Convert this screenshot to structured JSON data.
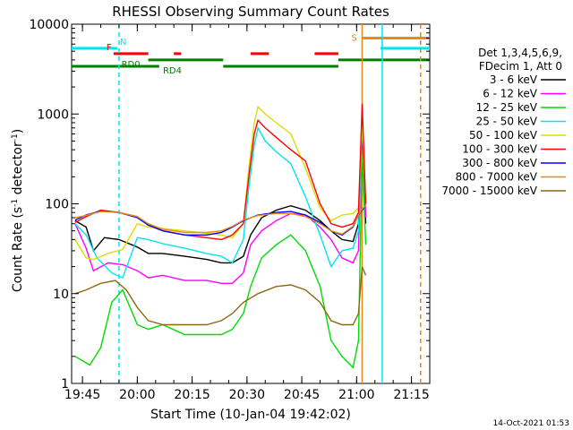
{
  "chart_data": {
    "type": "line",
    "title": "RHESSI Observing Summary Count Rates",
    "xlabel": "Start Time (10-Jan-04 19:42:02)",
    "ylabel": "Count Rate (s⁻¹ detector⁻¹)",
    "ylabel_parts": [
      "Count Rate (s",
      "-1",
      " detector",
      "-1",
      ")"
    ],
    "y_scale": "log",
    "ylim": [
      1,
      10000
    ],
    "xlim": [
      "19:42:02",
      "21:20:00"
    ],
    "x_unit": "time of day (UT)",
    "x_ticks": [
      "19:45",
      "20:00",
      "20:15",
      "20:30",
      "20:45",
      "21:00",
      "21:15"
    ],
    "y_ticks": [
      "1",
      "10",
      "100",
      "1000",
      "10000"
    ],
    "legend_title": [
      "Det 1,3,4,5,6,9,",
      "FDecim 1, Att 0"
    ],
    "legend_position": "right",
    "footer": "14-Oct-2021 01:53",
    "flags": [
      {
        "label": "N",
        "color": "#00e5ee",
        "segments": [
          [
            "19:42:02",
            "19:54:30"
          ],
          [
            "21:06:30",
            "21:20:00"
          ]
        ],
        "level": 5400
      },
      {
        "label": "S",
        "color": "#e88a16",
        "segments": [
          [
            "21:01:30",
            "21:20:00"
          ]
        ],
        "level": 7000
      },
      {
        "label": "F",
        "color": "#ff0000",
        "segments": [
          [
            "19:53:30",
            "20:03:00"
          ],
          [
            "20:10:00",
            "20:12:00"
          ],
          [
            "20:31:00",
            "20:36:00"
          ],
          [
            "20:48:30",
            "20:55:00"
          ]
        ],
        "level": 4700
      },
      {
        "label": "RD0",
        "color": "#008000",
        "segments": [
          [
            "20:03:00",
            "20:23:30"
          ],
          [
            "20:55:00",
            "21:20:00"
          ]
        ],
        "level": 4000
      },
      {
        "label": "RD4",
        "color": "#008000",
        "segments": [
          [
            "19:42:02",
            "20:06:00"
          ],
          [
            "20:23:30",
            "20:55:00"
          ]
        ],
        "level": 3400
      }
    ],
    "vlines": [
      {
        "time": "19:55:00",
        "color": "#00e5ee",
        "style": "dashed"
      },
      {
        "time": "21:01:30",
        "color": "#e88a16",
        "style": "solid"
      },
      {
        "time": "21:07:00",
        "color": "#00e5ee",
        "style": "solid"
      },
      {
        "time": "21:17:30",
        "color": "#e88a16",
        "style": "dashed"
      }
    ],
    "series": [
      {
        "name": "3 - 6 keV",
        "color": "#000000",
        "points": [
          [
            "19:43:00",
            65
          ],
          [
            "19:46:00",
            55
          ],
          [
            "19:48:00",
            30
          ],
          [
            "19:51:00",
            42
          ],
          [
            "19:55:00",
            40
          ],
          [
            "20:00:00",
            33
          ],
          [
            "20:03:00",
            28
          ],
          [
            "20:07:00",
            28
          ],
          [
            "20:13:00",
            26
          ],
          [
            "20:19:00",
            24
          ],
          [
            "20:23:00",
            22
          ],
          [
            "20:26:00",
            22
          ],
          [
            "20:29:00",
            26
          ],
          [
            "20:31:00",
            45
          ],
          [
            "20:34:00",
            70
          ],
          [
            "20:38:00",
            85
          ],
          [
            "20:42:00",
            95
          ],
          [
            "20:46:00",
            85
          ],
          [
            "20:50:00",
            65
          ],
          [
            "20:53:00",
            50
          ],
          [
            "20:56:00",
            40
          ],
          [
            "20:59:00",
            38
          ],
          [
            "21:00:30",
            60
          ],
          [
            "21:01:30",
            700
          ],
          [
            "21:02:30",
            60
          ]
        ]
      },
      {
        "name": "6 - 12 keV",
        "color": "#ff00ff",
        "points": [
          [
            "19:43:00",
            60
          ],
          [
            "19:46:00",
            32
          ],
          [
            "19:48:00",
            18
          ],
          [
            "19:52:00",
            22
          ],
          [
            "19:56:00",
            21
          ],
          [
            "20:00:00",
            18
          ],
          [
            "20:03:00",
            15
          ],
          [
            "20:07:00",
            16
          ],
          [
            "20:13:00",
            14
          ],
          [
            "20:19:00",
            14
          ],
          [
            "20:23:00",
            13
          ],
          [
            "20:26:00",
            13
          ],
          [
            "20:29:00",
            17
          ],
          [
            "20:31:00",
            35
          ],
          [
            "20:34:00",
            50
          ],
          [
            "20:38:00",
            65
          ],
          [
            "20:42:00",
            78
          ],
          [
            "20:46:00",
            75
          ],
          [
            "20:50:00",
            55
          ],
          [
            "20:53:00",
            40
          ],
          [
            "20:56:00",
            25
          ],
          [
            "20:59:00",
            22
          ],
          [
            "21:00:30",
            30
          ],
          [
            "21:01:30",
            900
          ],
          [
            "21:02:30",
            70
          ]
        ]
      },
      {
        "name": "12 - 25 keV",
        "color": "#00dd00",
        "points": [
          [
            "19:43:00",
            2
          ],
          [
            "19:47:00",
            1.6
          ],
          [
            "19:50:00",
            2.5
          ],
          [
            "19:53:00",
            8
          ],
          [
            "19:56:00",
            11
          ],
          [
            "20:00:00",
            4.5
          ],
          [
            "20:03:00",
            4
          ],
          [
            "20:07:00",
            4.5
          ],
          [
            "20:13:00",
            3.5
          ],
          [
            "20:19:00",
            3.5
          ],
          [
            "20:23:00",
            3.5
          ],
          [
            "20:26:00",
            4
          ],
          [
            "20:29:00",
            6
          ],
          [
            "20:31:00",
            12
          ],
          [
            "20:34:00",
            25
          ],
          [
            "20:38:00",
            35
          ],
          [
            "20:42:00",
            45
          ],
          [
            "20:46:00",
            30
          ],
          [
            "20:50:00",
            12
          ],
          [
            "20:53:00",
            3
          ],
          [
            "20:56:00",
            2
          ],
          [
            "20:59:00",
            1.5
          ],
          [
            "21:00:30",
            3
          ],
          [
            "21:01:30",
            350
          ],
          [
            "21:02:30",
            35
          ]
        ]
      },
      {
        "name": "25 - 50 keV",
        "color": "#00e5ee",
        "points": [
          [
            "19:43:00",
            60
          ],
          [
            "19:46:00",
            45
          ],
          [
            "19:49:00",
            25
          ],
          [
            "19:53:00",
            17
          ],
          [
            "19:56:00",
            15
          ],
          [
            "20:00:00",
            42
          ],
          [
            "20:03:00",
            40
          ],
          [
            "20:07:00",
            36
          ],
          [
            "20:13:00",
            32
          ],
          [
            "20:19:00",
            28
          ],
          [
            "20:23:00",
            26
          ],
          [
            "20:26:00",
            22
          ],
          [
            "20:29:00",
            40
          ],
          [
            "20:30:30",
            150
          ],
          [
            "20:32:00",
            450
          ],
          [
            "20:33:00",
            700
          ],
          [
            "20:35:00",
            500
          ],
          [
            "20:38:00",
            380
          ],
          [
            "20:42:00",
            280
          ],
          [
            "20:46:00",
            120
          ],
          [
            "20:50:00",
            45
          ],
          [
            "20:53:00",
            20
          ],
          [
            "20:56:00",
            30
          ],
          [
            "20:59:00",
            32
          ],
          [
            "21:00:30",
            50
          ],
          [
            "21:01:30",
            850
          ],
          [
            "21:02:30",
            100
          ]
        ]
      },
      {
        "name": "50 - 100 keV",
        "color": "#dddd00",
        "points": [
          [
            "19:43:00",
            40
          ],
          [
            "19:46:00",
            25
          ],
          [
            "19:48:00",
            24
          ],
          [
            "19:52:00",
            28
          ],
          [
            "19:56:00",
            31
          ],
          [
            "20:00:00",
            60
          ],
          [
            "20:03:00",
            55
          ],
          [
            "20:07:00",
            53
          ],
          [
            "20:13:00",
            50
          ],
          [
            "20:19:00",
            47
          ],
          [
            "20:23:00",
            45
          ],
          [
            "20:26:00",
            42
          ],
          [
            "20:29:00",
            60
          ],
          [
            "20:30:30",
            250
          ],
          [
            "20:32:00",
            800
          ],
          [
            "20:33:00",
            1200
          ],
          [
            "20:35:00",
            1000
          ],
          [
            "20:38:00",
            800
          ],
          [
            "20:42:00",
            600
          ],
          [
            "20:46:00",
            250
          ],
          [
            "20:50:00",
            90
          ],
          [
            "20:53:00",
            65
          ],
          [
            "20:56:00",
            75
          ],
          [
            "20:59:00",
            78
          ],
          [
            "21:00:30",
            90
          ],
          [
            "21:01:30",
            800
          ],
          [
            "21:02:30",
            100
          ]
        ]
      },
      {
        "name": "100 - 300 keV",
        "color": "#ff0000",
        "points": [
          [
            "19:43:00",
            62
          ],
          [
            "19:46:00",
            72
          ],
          [
            "19:50:00",
            85
          ],
          [
            "19:55:00",
            80
          ],
          [
            "20:00:00",
            72
          ],
          [
            "20:03:00",
            58
          ],
          [
            "20:07:00",
            50
          ],
          [
            "20:13:00",
            45
          ],
          [
            "20:19:00",
            42
          ],
          [
            "20:23:00",
            40
          ],
          [
            "20:26:00",
            45
          ],
          [
            "20:29:00",
            60
          ],
          [
            "20:30:30",
            200
          ],
          [
            "20:32:00",
            600
          ],
          [
            "20:33:00",
            850
          ],
          [
            "20:35:00",
            700
          ],
          [
            "20:38:00",
            550
          ],
          [
            "20:42:00",
            400
          ],
          [
            "20:46:00",
            300
          ],
          [
            "20:50:00",
            100
          ],
          [
            "20:53:00",
            60
          ],
          [
            "20:56:00",
            55
          ],
          [
            "20:59:00",
            60
          ],
          [
            "21:00:30",
            80
          ],
          [
            "21:01:30",
            1300
          ],
          [
            "21:02:30",
            100
          ]
        ]
      },
      {
        "name": "300 - 800 keV",
        "color": "#0000ff",
        "points": [
          [
            "19:43:00",
            66
          ],
          [
            "19:46:00",
            75
          ],
          [
            "19:50:00",
            83
          ],
          [
            "19:55:00",
            80
          ],
          [
            "20:00:00",
            70
          ],
          [
            "20:03:00",
            58
          ],
          [
            "20:07:00",
            50
          ],
          [
            "20:13:00",
            45
          ],
          [
            "20:19:00",
            45
          ],
          [
            "20:23:00",
            48
          ],
          [
            "20:26:00",
            55
          ],
          [
            "20:29:00",
            65
          ],
          [
            "20:33:00",
            75
          ],
          [
            "20:38:00",
            80
          ],
          [
            "20:42:00",
            82
          ],
          [
            "20:46:00",
            75
          ],
          [
            "20:50:00",
            62
          ],
          [
            "20:53:00",
            50
          ],
          [
            "20:56:00",
            45
          ],
          [
            "20:59:00",
            55
          ],
          [
            "21:00:30",
            75
          ],
          [
            "21:01:30",
            85
          ],
          [
            "21:02:30",
            95
          ]
        ]
      },
      {
        "name": "800 - 7000 keV",
        "color": "#e88a16",
        "points": [
          [
            "19:43:00",
            70
          ],
          [
            "19:46:00",
            74
          ],
          [
            "19:50:00",
            82
          ],
          [
            "19:55:00",
            80
          ],
          [
            "20:00:00",
            72
          ],
          [
            "20:03:00",
            60
          ],
          [
            "20:07:00",
            52
          ],
          [
            "20:13:00",
            48
          ],
          [
            "20:19:00",
            48
          ],
          [
            "20:23:00",
            50
          ],
          [
            "20:26:00",
            56
          ],
          [
            "20:29:00",
            66
          ],
          [
            "20:33:00",
            74
          ],
          [
            "20:38:00",
            78
          ],
          [
            "20:42:00",
            78
          ],
          [
            "20:46:00",
            72
          ],
          [
            "20:50:00",
            60
          ],
          [
            "20:53:00",
            50
          ],
          [
            "20:56:00",
            46
          ],
          [
            "20:59:00",
            56
          ],
          [
            "21:00:30",
            75
          ],
          [
            "21:01:30",
            88
          ],
          [
            "21:02:30",
            95
          ]
        ]
      },
      {
        "name": "7000 - 15000 keV",
        "color": "#8b6914",
        "points": [
          [
            "19:43:00",
            10
          ],
          [
            "19:46:00",
            11
          ],
          [
            "19:50:00",
            13
          ],
          [
            "19:54:00",
            14
          ],
          [
            "19:57:00",
            11
          ],
          [
            "20:00:00",
            7
          ],
          [
            "20:03:00",
            5
          ],
          [
            "20:07:00",
            4.5
          ],
          [
            "20:13:00",
            4.5
          ],
          [
            "20:19:00",
            4.5
          ],
          [
            "20:23:00",
            5
          ],
          [
            "20:26:00",
            6
          ],
          [
            "20:29:00",
            8
          ],
          [
            "20:33:00",
            10
          ],
          [
            "20:38:00",
            12
          ],
          [
            "20:42:00",
            12.5
          ],
          [
            "20:46:00",
            11
          ],
          [
            "20:50:00",
            8
          ],
          [
            "20:53:00",
            5
          ],
          [
            "20:56:00",
            4.5
          ],
          [
            "20:59:00",
            4.5
          ],
          [
            "21:00:30",
            6
          ],
          [
            "21:01:30",
            20
          ],
          [
            "21:02:30",
            16
          ]
        ]
      }
    ]
  }
}
